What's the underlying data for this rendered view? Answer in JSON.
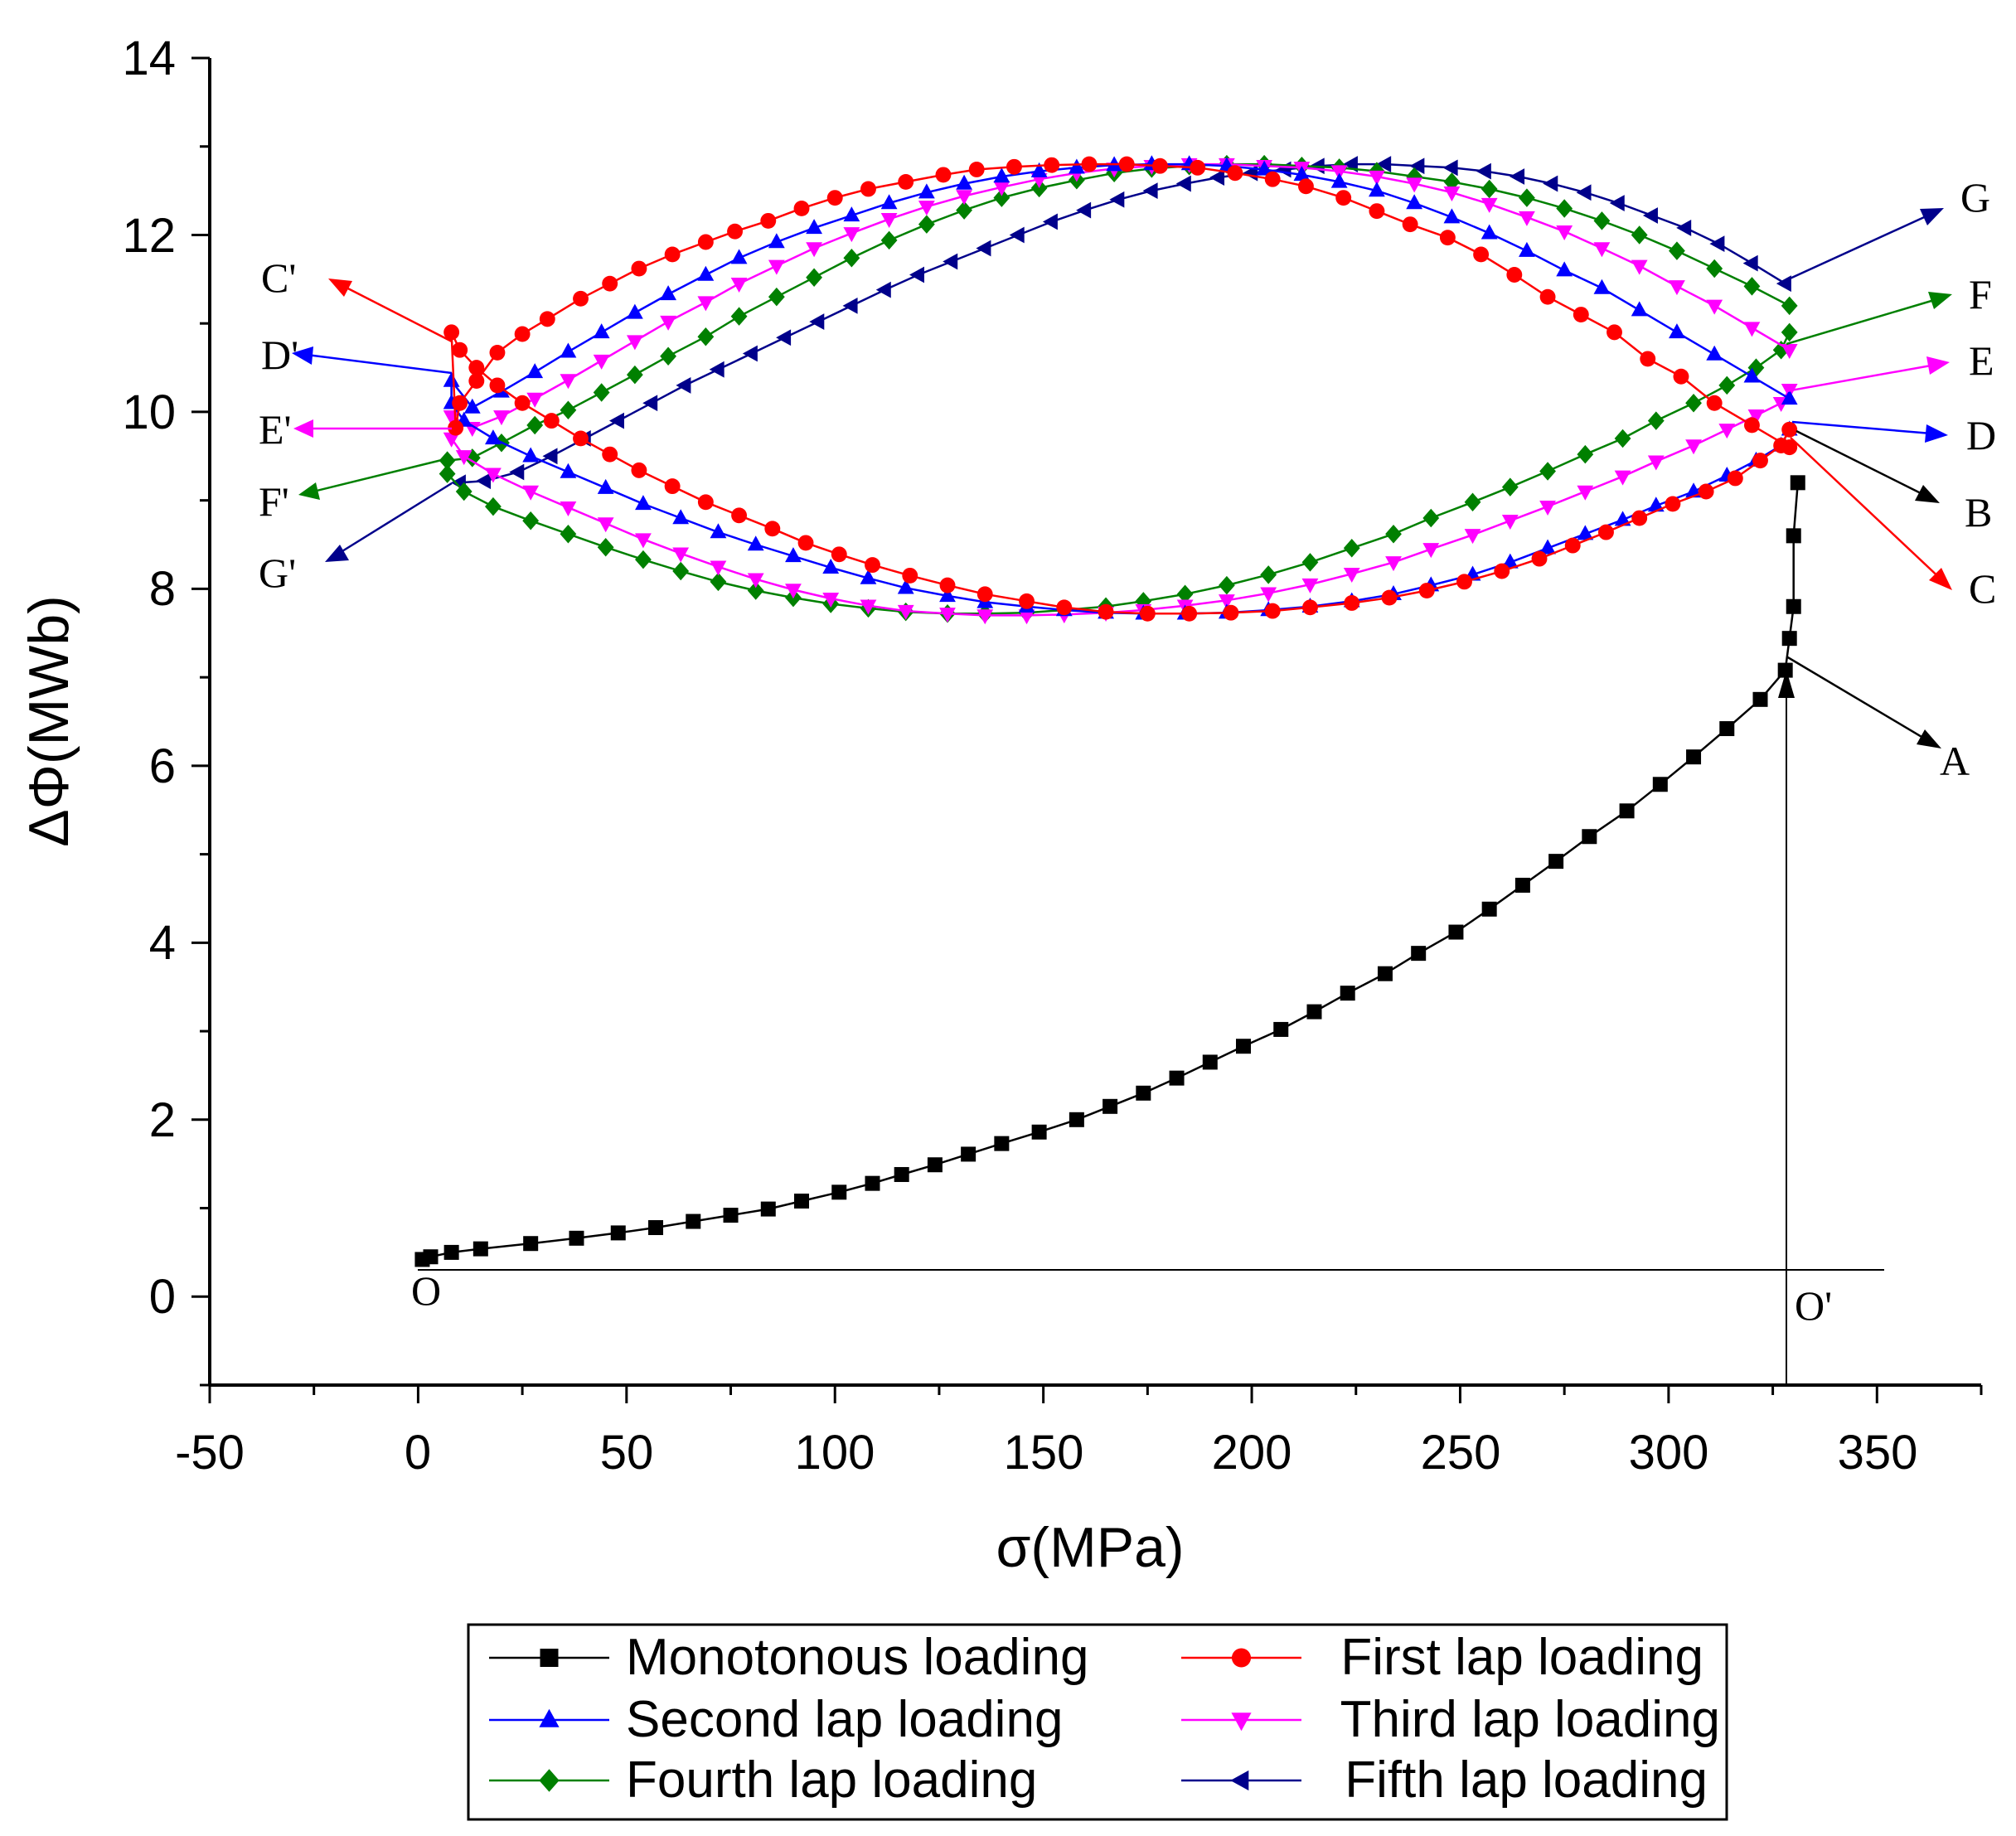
{
  "chart_data": {
    "type": "line",
    "title": "",
    "xlabel": "σ(MPa)",
    "ylabel": "ΔΦ(MWb)",
    "xlim": [
      -50,
      375
    ],
    "ylim": [
      -1,
      14
    ],
    "xticks": [
      -50,
      0,
      50,
      100,
      150,
      200,
      250,
      300,
      350
    ],
    "yticks": [
      0,
      2,
      4,
      6,
      8,
      10,
      12,
      14
    ],
    "xtick_labels": [
      "-50",
      "0",
      "50",
      "100",
      "150",
      "200",
      "250",
      "300",
      "350"
    ],
    "ytick_labels": [
      "0",
      "2",
      "4",
      "6",
      "8",
      "10",
      "12",
      "14"
    ],
    "grid": false,
    "legend_position": "bottom",
    "series": [
      {
        "name": "Monotonous loading",
        "color": "#000000",
        "marker": "square",
        "x": [
          1,
          3,
          8,
          15,
          27,
          38,
          48,
          57,
          66,
          75,
          84,
          92,
          101,
          109,
          116,
          124,
          132,
          140,
          149,
          158,
          166,
          174,
          182,
          190,
          198,
          207,
          215,
          223,
          232,
          240,
          249,
          257,
          265,
          273,
          281,
          290,
          298,
          306,
          314,
          322,
          328,
          329,
          330,
          330,
          331
        ],
        "y": [
          0.42,
          0.45,
          0.5,
          0.54,
          0.6,
          0.66,
          0.72,
          0.78,
          0.85,
          0.92,
          0.99,
          1.08,
          1.18,
          1.28,
          1.38,
          1.49,
          1.61,
          1.73,
          1.86,
          2.0,
          2.15,
          2.3,
          2.47,
          2.65,
          2.83,
          3.02,
          3.22,
          3.43,
          3.65,
          3.88,
          4.12,
          4.38,
          4.65,
          4.92,
          5.2,
          5.49,
          5.79,
          6.1,
          6.42,
          6.75,
          7.08,
          7.44,
          7.8,
          8.6,
          9.2
        ]
      },
      {
        "name": "First lap loading",
        "color": "#ff0000",
        "marker": "circle",
        "x": [
          329,
          320,
          311,
          303,
          295,
          287,
          279,
          271,
          263,
          255,
          247,
          238,
          230,
          222,
          213,
          205,
          196,
          187,
          178,
          170,
          161,
          152,
          143,
          134,
          126,
          117,
          108,
          100,
          92,
          84,
          76,
          69,
          61,
          53,
          46,
          39,
          31,
          25,
          19,
          14,
          10,
          9,
          8,
          10,
          14,
          19,
          25,
          32,
          39,
          46,
          53,
          61,
          69,
          77,
          85,
          93,
          101,
          109,
          118,
          127,
          136,
          146,
          155,
          165,
          175,
          185,
          195,
          205,
          214,
          224,
          233,
          242,
          251,
          260,
          269,
          277,
          285,
          293,
          301,
          309,
          316,
          322,
          327,
          329
        ],
        "y": [
          9.6,
          9.85,
          10.1,
          10.4,
          10.6,
          10.9,
          11.1,
          11.3,
          11.55,
          11.78,
          11.97,
          12.12,
          12.27,
          12.42,
          12.55,
          12.63,
          12.7,
          12.76,
          12.78,
          12.8,
          12.8,
          12.79,
          12.77,
          12.74,
          12.68,
          12.6,
          12.52,
          12.42,
          12.3,
          12.16,
          12.04,
          11.92,
          11.78,
          11.62,
          11.45,
          11.28,
          11.05,
          10.88,
          10.67,
          10.35,
          10.1,
          9.82,
          10.9,
          10.7,
          10.5,
          10.3,
          10.1,
          9.9,
          9.7,
          9.52,
          9.34,
          9.16,
          8.98,
          8.83,
          8.68,
          8.52,
          8.39,
          8.27,
          8.15,
          8.04,
          7.94,
          7.86,
          7.79,
          7.74,
          7.72,
          7.72,
          7.73,
          7.75,
          7.79,
          7.84,
          7.9,
          7.98,
          8.08,
          8.2,
          8.34,
          8.49,
          8.64,
          8.8,
          8.96,
          9.1,
          9.25,
          9.45,
          9.62,
          9.8
        ]
      },
      {
        "name": "Second lap loading",
        "color": "#0000ff",
        "marker": "triangle-up",
        "x": [
          329,
          320,
          311,
          302,
          293,
          284,
          275,
          266,
          257,
          248,
          239,
          230,
          221,
          212,
          203,
          194,
          185,
          176,
          167,
          158,
          149,
          140,
          131,
          122,
          113,
          104,
          95,
          86,
          77,
          69,
          60,
          52,
          44,
          36,
          28,
          20,
          13,
          8,
          8,
          11,
          18,
          27,
          36,
          45,
          54,
          63,
          72,
          81,
          90,
          99,
          108,
          117,
          127,
          136,
          146,
          155,
          165,
          174,
          184,
          194,
          204,
          214,
          224,
          234,
          243,
          253,
          262,
          271,
          280,
          289,
          297,
          306,
          314,
          321,
          327,
          329
        ],
        "y": [
          10.15,
          10.4,
          10.65,
          10.9,
          11.15,
          11.4,
          11.6,
          11.82,
          12.02,
          12.2,
          12.36,
          12.5,
          12.6,
          12.68,
          12.74,
          12.78,
          12.8,
          12.8,
          12.79,
          12.76,
          12.72,
          12.66,
          12.58,
          12.48,
          12.36,
          12.22,
          12.08,
          11.92,
          11.74,
          11.55,
          11.33,
          11.12,
          10.9,
          10.68,
          10.45,
          10.23,
          10.05,
          10.35,
          10.1,
          9.9,
          9.7,
          9.5,
          9.32,
          9.14,
          8.96,
          8.8,
          8.64,
          8.5,
          8.37,
          8.24,
          8.12,
          8.01,
          7.92,
          7.85,
          7.8,
          7.76,
          7.73,
          7.72,
          7.72,
          7.73,
          7.76,
          7.8,
          7.86,
          7.94,
          8.04,
          8.16,
          8.3,
          8.46,
          8.62,
          8.78,
          8.94,
          9.1,
          9.28,
          9.45,
          9.62,
          9.8
        ]
      },
      {
        "name": "Third lap loading",
        "color": "#ff00ff",
        "marker": "triangle-down",
        "x": [
          329,
          320,
          311,
          302,
          293,
          284,
          275,
          266,
          257,
          248,
          239,
          230,
          221,
          212,
          203,
          194,
          185,
          176,
          167,
          158,
          149,
          140,
          131,
          122,
          113,
          104,
          95,
          86,
          77,
          69,
          60,
          52,
          44,
          36,
          28,
          20,
          13,
          8,
          8,
          11,
          18,
          27,
          36,
          45,
          54,
          63,
          72,
          81,
          90,
          99,
          108,
          117,
          127,
          136,
          146,
          155,
          165,
          174,
          184,
          194,
          204,
          214,
          224,
          234,
          243,
          253,
          262,
          271,
          280,
          289,
          297,
          306,
          314,
          321,
          327,
          329
        ],
        "y": [
          10.7,
          10.95,
          11.2,
          11.42,
          11.65,
          11.85,
          12.04,
          12.2,
          12.35,
          12.48,
          12.58,
          12.66,
          12.72,
          12.76,
          12.78,
          12.8,
          12.8,
          12.78,
          12.75,
          12.7,
          12.63,
          12.54,
          12.44,
          12.32,
          12.18,
          12.02,
          11.85,
          11.65,
          11.45,
          11.24,
          11.02,
          10.8,
          10.58,
          10.36,
          10.15,
          9.95,
          9.82,
          9.95,
          9.7,
          9.5,
          9.3,
          9.1,
          8.92,
          8.74,
          8.56,
          8.4,
          8.25,
          8.11,
          7.99,
          7.89,
          7.81,
          7.75,
          7.72,
          7.7,
          7.7,
          7.71,
          7.73,
          7.76,
          7.81,
          7.87,
          7.95,
          8.05,
          8.17,
          8.3,
          8.45,
          8.61,
          8.77,
          8.93,
          9.1,
          9.27,
          9.44,
          9.62,
          9.8,
          9.96,
          10.1,
          10.25
        ]
      },
      {
        "name": "Fourth lap loading",
        "color": "#008000",
        "marker": "diamond",
        "x": [
          329,
          320,
          311,
          302,
          293,
          284,
          275,
          266,
          257,
          248,
          239,
          230,
          221,
          212,
          203,
          194,
          185,
          176,
          167,
          158,
          149,
          140,
          131,
          122,
          113,
          104,
          95,
          86,
          77,
          69,
          60,
          52,
          44,
          36,
          28,
          20,
          13,
          7,
          7,
          11,
          18,
          27,
          36,
          45,
          54,
          63,
          72,
          81,
          90,
          99,
          108,
          117,
          127,
          136,
          146,
          155,
          165,
          174,
          184,
          194,
          204,
          214,
          224,
          234,
          243,
          253,
          262,
          271,
          280,
          289,
          297,
          306,
          314,
          321,
          327,
          329
        ],
        "y": [
          11.2,
          11.42,
          11.62,
          11.82,
          12.0,
          12.16,
          12.3,
          12.42,
          12.52,
          12.6,
          12.66,
          12.72,
          12.76,
          12.78,
          12.8,
          12.8,
          12.78,
          12.75,
          12.7,
          12.62,
          12.53,
          12.42,
          12.28,
          12.12,
          11.94,
          11.74,
          11.52,
          11.3,
          11.08,
          10.85,
          10.63,
          10.42,
          10.22,
          10.02,
          9.85,
          9.65,
          9.48,
          9.45,
          9.3,
          9.1,
          8.93,
          8.77,
          8.62,
          8.47,
          8.33,
          8.2,
          8.08,
          7.98,
          7.9,
          7.83,
          7.78,
          7.74,
          7.72,
          7.72,
          7.73,
          7.76,
          7.8,
          7.86,
          7.94,
          8.04,
          8.16,
          8.3,
          8.46,
          8.62,
          8.8,
          8.98,
          9.15,
          9.33,
          9.52,
          9.7,
          9.9,
          10.1,
          10.3,
          10.5,
          10.7,
          10.9
        ]
      },
      {
        "name": "Fifth lap loading",
        "color": "#00008b",
        "marker": "triangle-left",
        "x": [
          328,
          320,
          312,
          304,
          296,
          288,
          280,
          272,
          264,
          256,
          248,
          240,
          232,
          224,
          216,
          208,
          200,
          192,
          184,
          176,
          168,
          160,
          152,
          144,
          136,
          128,
          120,
          112,
          104,
          96,
          88,
          80,
          72,
          64,
          56,
          48,
          40,
          32,
          24,
          16,
          10
        ],
        "y": [
          11.45,
          11.68,
          11.9,
          12.08,
          12.22,
          12.36,
          12.48,
          12.58,
          12.66,
          12.72,
          12.76,
          12.78,
          12.8,
          12.8,
          12.78,
          12.74,
          12.7,
          12.65,
          12.58,
          12.5,
          12.4,
          12.28,
          12.15,
          12.0,
          11.85,
          11.7,
          11.55,
          11.38,
          11.2,
          11.02,
          10.84,
          10.66,
          10.48,
          10.3,
          10.1,
          9.9,
          9.7,
          9.5,
          9.32,
          9.22,
          9.2
        ]
      }
    ],
    "annotations": [
      "A",
      "B",
      "C",
      "D",
      "E",
      "F",
      "G",
      "C'",
      "D'",
      "E'",
      "F'",
      "G'",
      "O",
      "O'"
    ]
  }
}
